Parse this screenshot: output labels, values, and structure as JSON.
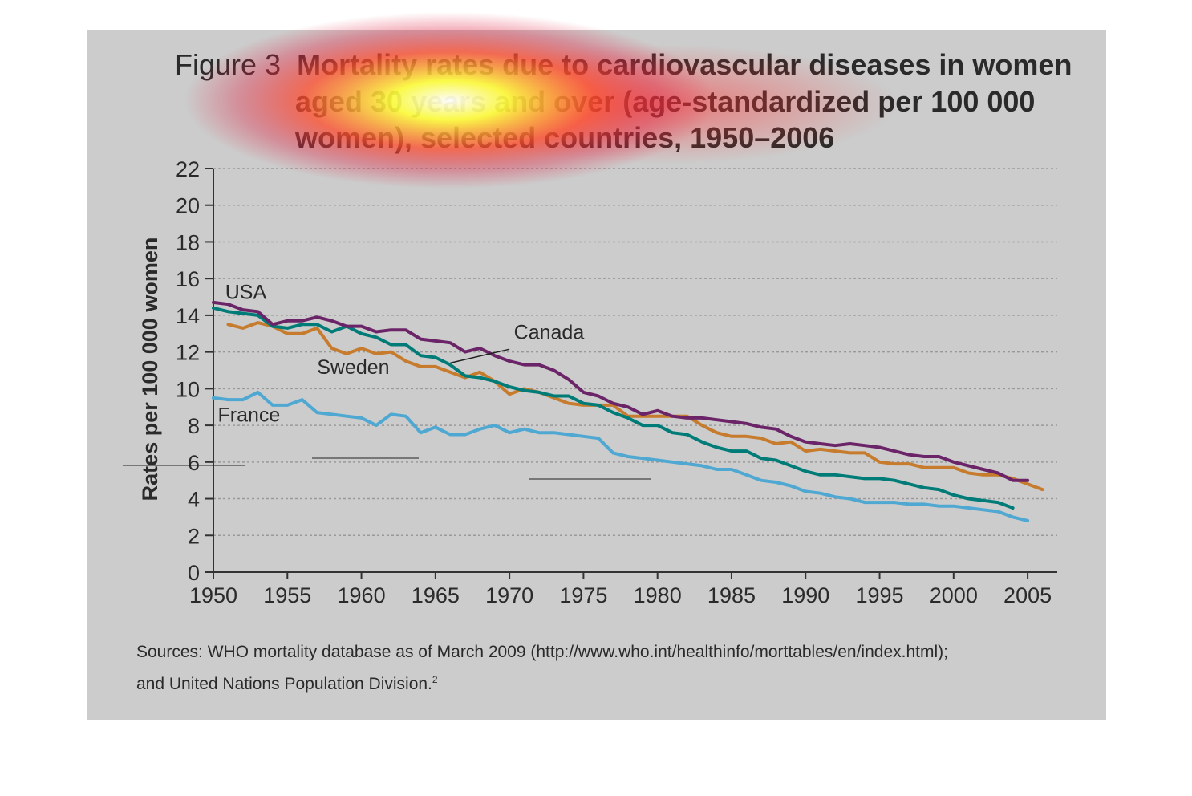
{
  "figure": {
    "prefix": "Figure 3",
    "title_line1": "Mortality rates due to cardiovascular diseases in women",
    "title_line2": "aged 30 years and over (age-standardized per 100 000",
    "title_line3": "women), selected countries, 1950–2006"
  },
  "sources": {
    "line1": "Sources: WHO mortality database as of March 2009 (http://www.who.int/healthinfo/morttables/en/index.html);",
    "line2": "and United Nations Population Division.",
    "footnote": "2"
  },
  "chart_data": {
    "type": "line",
    "title": "Mortality rates due to cardiovascular diseases in women aged 30 years and over (age-standardized per 100 000 women), selected countries, 1950–2006",
    "xlabel": "",
    "ylabel": "Rates per 100 000 women",
    "xlim": [
      1950,
      2007
    ],
    "ylim": [
      0,
      22
    ],
    "xticks": [
      1950,
      1955,
      1960,
      1965,
      1970,
      1975,
      1980,
      1985,
      1990,
      1995,
      2000,
      2005
    ],
    "yticks": [
      0,
      2,
      4,
      6,
      8,
      10,
      12,
      14,
      16,
      18,
      20,
      22
    ],
    "grid": "horizontal dotted",
    "colors": {
      "USA": "#6b2467",
      "Canada": "#007c78",
      "Sweden": "#c77b2d",
      "France": "#4fa8d2",
      "grid": "#999999",
      "axis": "#333333",
      "panel": "#cccccc",
      "text": "#2a2a2a"
    },
    "series": [
      {
        "name": "USA",
        "x": [
          1950,
          1951,
          1952,
          1953,
          1954,
          1955,
          1956,
          1957,
          1958,
          1959,
          1960,
          1961,
          1962,
          1963,
          1964,
          1965,
          1966,
          1967,
          1968,
          1969,
          1970,
          1971,
          1972,
          1973,
          1974,
          1975,
          1976,
          1977,
          1978,
          1979,
          1980,
          1981,
          1982,
          1983,
          1984,
          1985,
          1986,
          1987,
          1988,
          1989,
          1990,
          1991,
          1992,
          1993,
          1994,
          1995,
          1996,
          1997,
          1998,
          1999,
          2000,
          2001,
          2002,
          2003,
          2004,
          2005
        ],
        "y": [
          14.7,
          14.6,
          14.3,
          14.2,
          13.5,
          13.7,
          13.7,
          13.9,
          13.7,
          13.4,
          13.4,
          13.1,
          13.2,
          13.2,
          12.7,
          12.6,
          12.5,
          12.0,
          12.2,
          11.8,
          11.5,
          11.3,
          11.3,
          11.0,
          10.5,
          9.8,
          9.6,
          9.2,
          9.0,
          8.6,
          8.8,
          8.5,
          8.4,
          8.4,
          8.3,
          8.2,
          8.1,
          7.9,
          7.8,
          7.4,
          7.1,
          7.0,
          6.9,
          7.0,
          6.9,
          6.8,
          6.6,
          6.4,
          6.3,
          6.3,
          6.0,
          5.8,
          5.6,
          5.4,
          5.0,
          5.0
        ]
      },
      {
        "name": "Canada",
        "x": [
          1950,
          1951,
          1952,
          1953,
          1954,
          1955,
          1956,
          1957,
          1958,
          1959,
          1960,
          1961,
          1962,
          1963,
          1964,
          1965,
          1966,
          1967,
          1968,
          1969,
          1970,
          1971,
          1972,
          1973,
          1974,
          1975,
          1976,
          1977,
          1978,
          1979,
          1980,
          1981,
          1982,
          1983,
          1984,
          1985,
          1986,
          1987,
          1988,
          1989,
          1990,
          1991,
          1992,
          1993,
          1994,
          1995,
          1996,
          1997,
          1998,
          1999,
          2000,
          2001,
          2002,
          2003,
          2004
        ],
        "y": [
          14.4,
          14.2,
          14.1,
          14.0,
          13.4,
          13.3,
          13.5,
          13.5,
          13.1,
          13.4,
          13.0,
          12.8,
          12.4,
          12.4,
          11.8,
          11.7,
          11.3,
          10.7,
          10.6,
          10.4,
          10.1,
          9.9,
          9.8,
          9.6,
          9.6,
          9.2,
          9.1,
          8.7,
          8.4,
          8.0,
          8.0,
          7.6,
          7.5,
          7.1,
          6.8,
          6.6,
          6.6,
          6.2,
          6.1,
          5.8,
          5.5,
          5.3,
          5.3,
          5.2,
          5.1,
          5.1,
          5.0,
          4.8,
          4.6,
          4.5,
          4.2,
          4.0,
          3.9,
          3.8,
          3.5
        ]
      },
      {
        "name": "Sweden",
        "x": [
          1951,
          1952,
          1953,
          1954,
          1955,
          1956,
          1957,
          1958,
          1959,
          1960,
          1961,
          1962,
          1963,
          1964,
          1965,
          1966,
          1967,
          1968,
          1969,
          1970,
          1971,
          1972,
          1973,
          1974,
          1975,
          1976,
          1977,
          1978,
          1979,
          1980,
          1981,
          1982,
          1983,
          1984,
          1985,
          1986,
          1987,
          1988,
          1989,
          1990,
          1991,
          1992,
          1993,
          1994,
          1995,
          1996,
          1997,
          1998,
          1999,
          2000,
          2001,
          2002,
          2003,
          2004,
          2005,
          2006
        ],
        "y": [
          13.5,
          13.3,
          13.6,
          13.4,
          13.0,
          13.0,
          13.3,
          12.2,
          11.9,
          12.2,
          11.9,
          12.0,
          11.5,
          11.2,
          11.2,
          10.9,
          10.6,
          10.9,
          10.4,
          9.7,
          10.0,
          9.8,
          9.5,
          9.2,
          9.1,
          9.1,
          9.1,
          8.5,
          8.5,
          8.5,
          8.5,
          8.5,
          8.0,
          7.6,
          7.4,
          7.4,
          7.3,
          7.0,
          7.1,
          6.6,
          6.7,
          6.6,
          6.5,
          6.5,
          6.0,
          5.9,
          5.9,
          5.7,
          5.7,
          5.7,
          5.4,
          5.3,
          5.3,
          5.1,
          4.8,
          4.5
        ]
      },
      {
        "name": "France",
        "x": [
          1950,
          1951,
          1952,
          1953,
          1954,
          1955,
          1956,
          1957,
          1958,
          1959,
          1960,
          1961,
          1962,
          1963,
          1964,
          1965,
          1966,
          1967,
          1968,
          1969,
          1970,
          1971,
          1972,
          1973,
          1974,
          1975,
          1976,
          1977,
          1978,
          1979,
          1980,
          1981,
          1982,
          1983,
          1984,
          1985,
          1986,
          1987,
          1988,
          1989,
          1990,
          1991,
          1992,
          1993,
          1994,
          1995,
          1996,
          1997,
          1998,
          1999,
          2000,
          2001,
          2002,
          2003,
          2004,
          2005
        ],
        "y": [
          9.5,
          9.4,
          9.4,
          9.8,
          9.1,
          9.1,
          9.4,
          8.7,
          8.6,
          8.5,
          8.4,
          8.0,
          8.6,
          8.5,
          7.6,
          7.9,
          7.5,
          7.5,
          7.8,
          8.0,
          7.6,
          7.8,
          7.6,
          7.6,
          7.5,
          7.4,
          7.3,
          6.5,
          6.3,
          6.2,
          6.1,
          6.0,
          5.9,
          5.8,
          5.6,
          5.6,
          5.3,
          5.0,
          4.9,
          4.7,
          4.4,
          4.3,
          4.1,
          4.0,
          3.8,
          3.8,
          3.8,
          3.7,
          3.7,
          3.6,
          3.6,
          3.5,
          3.4,
          3.3,
          3.0,
          2.8
        ]
      }
    ],
    "series_labels": [
      "USA",
      "Canada",
      "Sweden",
      "France"
    ]
  }
}
